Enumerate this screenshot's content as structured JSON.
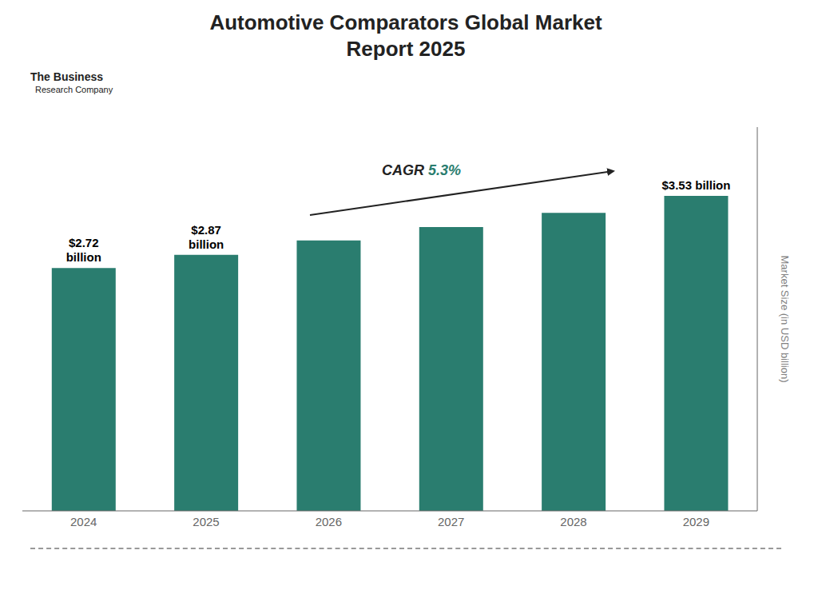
{
  "chart_data": {
    "type": "bar",
    "title": "Automotive Comparators Global Market\nReport 2025",
    "categories": [
      "2024",
      "2025",
      "2026",
      "2027",
      "2028",
      "2029"
    ],
    "values": [
      2.72,
      2.87,
      3.03,
      3.18,
      3.34,
      3.53
    ],
    "value_labels": [
      "$2.72\nbillion",
      "$2.87\nbillion",
      null,
      null,
      null,
      "$3.53 billion"
    ],
    "color": "#2a7d6f",
    "y_label": "Market Size (in USD billion)",
    "ylim": [
      0,
      4.3
    ],
    "yticks": [],
    "grid": false,
    "tick_labels": "x",
    "annotations": [
      "CAGR 5.3%",
      "The Business",
      "Research Company"
    ]
  }
}
